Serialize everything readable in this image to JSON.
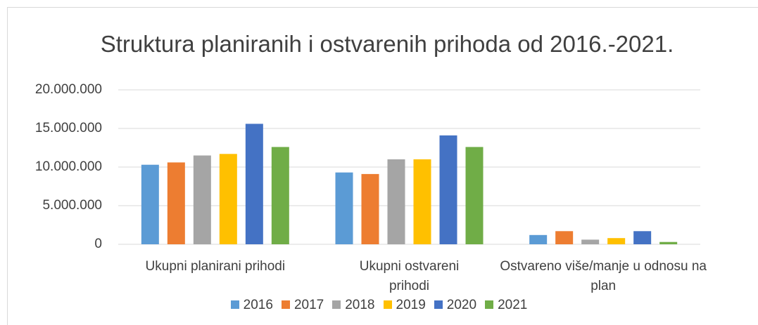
{
  "chart_data": {
    "type": "bar",
    "title": "Struktura planiranih i ostvarenih prihoda od 2016.-2021.",
    "categories": [
      "Ukupni planirani prihodi",
      "Ukupni ostvareni prihodi",
      "Ostvareno više/manje u odnosu na plan"
    ],
    "series": [
      {
        "name": "2016",
        "color": "#5b9bd5",
        "values": [
          10300000,
          9300000,
          1200000
        ]
      },
      {
        "name": "2017",
        "color": "#ed7d31",
        "values": [
          10600000,
          9100000,
          1700000
        ]
      },
      {
        "name": "2018",
        "color": "#a5a5a5",
        "values": [
          11500000,
          11000000,
          600000
        ]
      },
      {
        "name": "2019",
        "color": "#ffc000",
        "values": [
          11700000,
          11000000,
          800000
        ]
      },
      {
        "name": "2020",
        "color": "#4472c4",
        "values": [
          15600000,
          14100000,
          1700000
        ]
      },
      {
        "name": "2021",
        "color": "#70ad47",
        "values": [
          12600000,
          12600000,
          300000
        ]
      }
    ],
    "ylim": [
      0,
      20000000
    ],
    "yticks": [
      0,
      {
        "value": 5000000,
        "label": "5.000.000"
      },
      {
        "value": 10000000,
        "label": "10.000.000"
      },
      {
        "value": 15000000,
        "label": "15.000.000"
      },
      {
        "value": 20000000,
        "label": "20.000.000"
      }
    ],
    "grid": true
  }
}
